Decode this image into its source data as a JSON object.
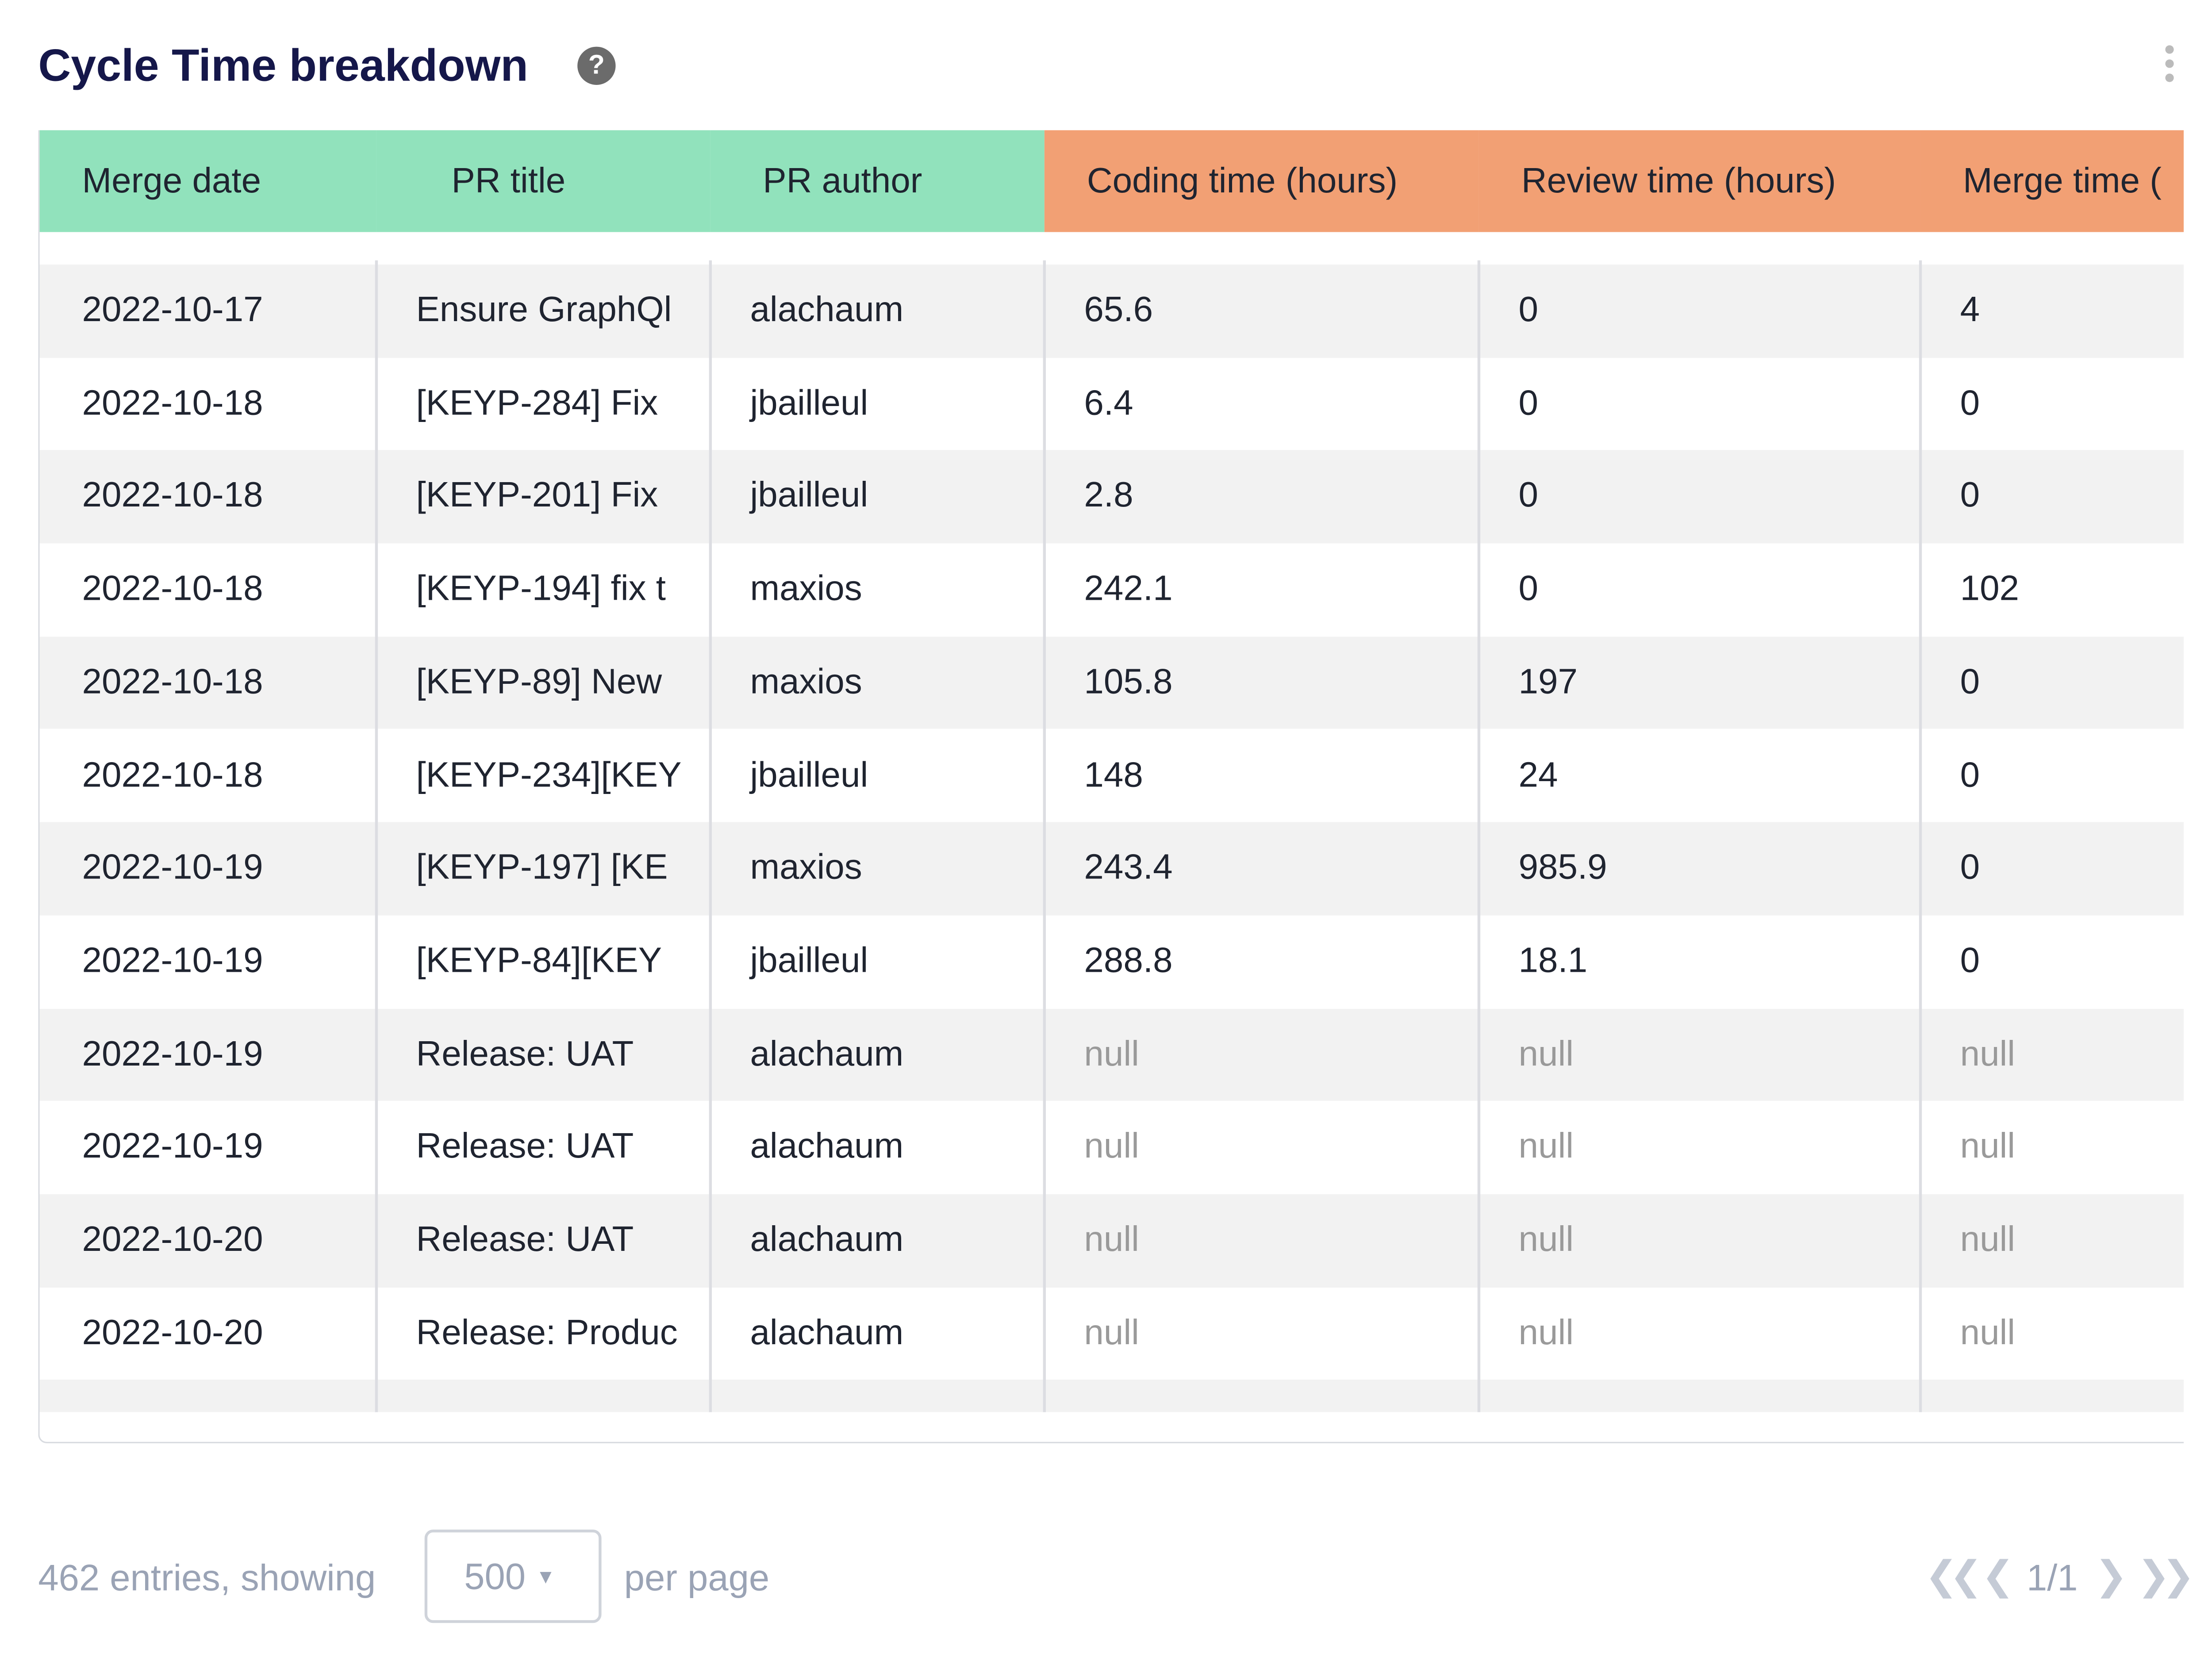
{
  "header": {
    "title": "Cycle Time breakdown"
  },
  "table": {
    "columns": [
      "Merge date",
      "PR title",
      "PR author",
      "Coding time (hours)",
      "Review time (hours)",
      "Merge time ("
    ],
    "rows": [
      [
        "2022-10-17",
        "Ensure GraphQl",
        "alachaum",
        65.6,
        0,
        4
      ],
      [
        "2022-10-18",
        "[KEYP-284] Fix",
        "jbailleul",
        6.4,
        0,
        0
      ],
      [
        "2022-10-18",
        "[KEYP-201] Fix",
        "jbailleul",
        2.8,
        0,
        0
      ],
      [
        "2022-10-18",
        "[KEYP-194] fix t",
        "maxios",
        242.1,
        0,
        102
      ],
      [
        "2022-10-18",
        "[KEYP-89] New",
        "maxios",
        105.8,
        197,
        0
      ],
      [
        "2022-10-18",
        "[KEYP-234][KEY",
        "jbailleul",
        148,
        24,
        0
      ],
      [
        "2022-10-19",
        "[KEYP-197] [KE",
        "maxios",
        243.4,
        985.9,
        0
      ],
      [
        "2022-10-19",
        "[KEYP-84][KEY",
        "jbailleul",
        288.8,
        18.1,
        0
      ],
      [
        "2022-10-19",
        "Release: UAT",
        "alachaum",
        "null",
        "null",
        "null"
      ],
      [
        "2022-10-19",
        "Release: UAT",
        "alachaum",
        "null",
        "null",
        "null"
      ],
      [
        "2022-10-20",
        "Release: UAT",
        "alachaum",
        "null",
        "null",
        "null"
      ],
      [
        "2022-10-20",
        "Release: Produc",
        "alachaum",
        "null",
        "null",
        "null"
      ]
    ]
  },
  "footer": {
    "entries": "462 entries, showing",
    "page_size": "500",
    "per_page": "per page",
    "pagination": "1/1"
  }
}
